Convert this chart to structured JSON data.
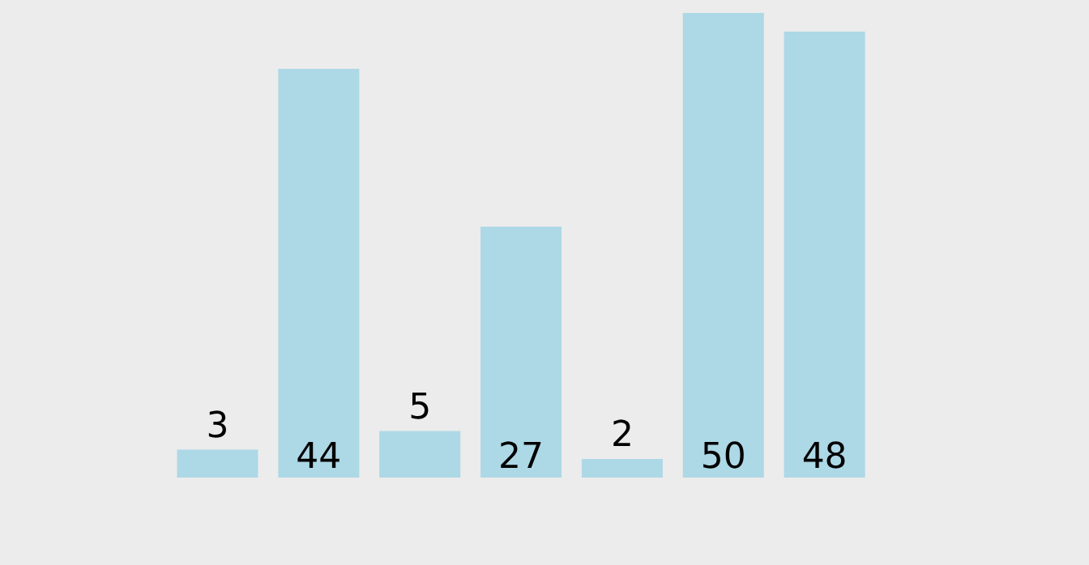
{
  "chart_data": {
    "type": "bar",
    "categories": [
      null,
      null,
      null,
      null,
      null,
      null,
      null
    ],
    "values": [
      3,
      44,
      5,
      27,
      2,
      50,
      48
    ],
    "color": "#add8e6",
    "data_labels": true
  }
}
